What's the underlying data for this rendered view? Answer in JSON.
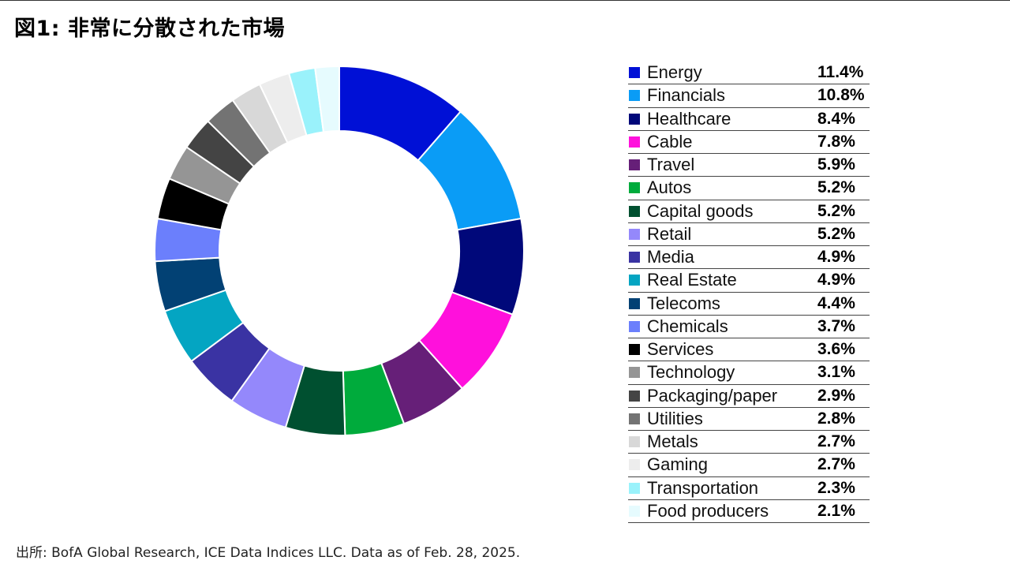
{
  "title": "図1: 非常に分散された市場",
  "source": "出所: BofA Global Research, ICE Data Indices LLC. Data as of Feb. 28, 2025.",
  "chart_data": {
    "type": "pie",
    "style": "donut",
    "legend_position": "right",
    "categories": [
      "Energy",
      "Financials",
      "Healthcare",
      "Cable",
      "Travel",
      "Autos",
      "Capital goods",
      "Retail",
      "Media",
      "Real Estate",
      "Telecoms",
      "Chemicals",
      "Services",
      "Technology",
      "Packaging/paper",
      "Utilities",
      "Metals",
      "Gaming",
      "Transportation",
      "Food producers"
    ],
    "values": [
      11.4,
      10.8,
      8.4,
      7.8,
      5.9,
      5.2,
      5.2,
      5.2,
      4.9,
      4.9,
      4.4,
      3.7,
      3.6,
      3.1,
      2.9,
      2.8,
      2.7,
      2.7,
      2.3,
      2.1
    ],
    "value_labels": [
      "11.4%",
      "10.8%",
      "8.4%",
      "7.8%",
      "5.9%",
      "5.2%",
      "5.2%",
      "5.2%",
      "4.9%",
      "4.9%",
      "4.4%",
      "3.7%",
      "3.6%",
      "3.1%",
      "2.9%",
      "2.8%",
      "2.7%",
      "2.7%",
      "2.3%",
      "2.1%"
    ],
    "colors": [
      "#0010d6",
      "#0a9cf6",
      "#00087a",
      "#ff10dc",
      "#661f78",
      "#00ab3c",
      "#005030",
      "#9488fb",
      "#3a33a3",
      "#04a5c2",
      "#024174",
      "#6b7ffc",
      "#000000",
      "#959595",
      "#444444",
      "#737373",
      "#d8d8d8",
      "#ededed",
      "#9af2fb",
      "#e6fbfe"
    ]
  }
}
